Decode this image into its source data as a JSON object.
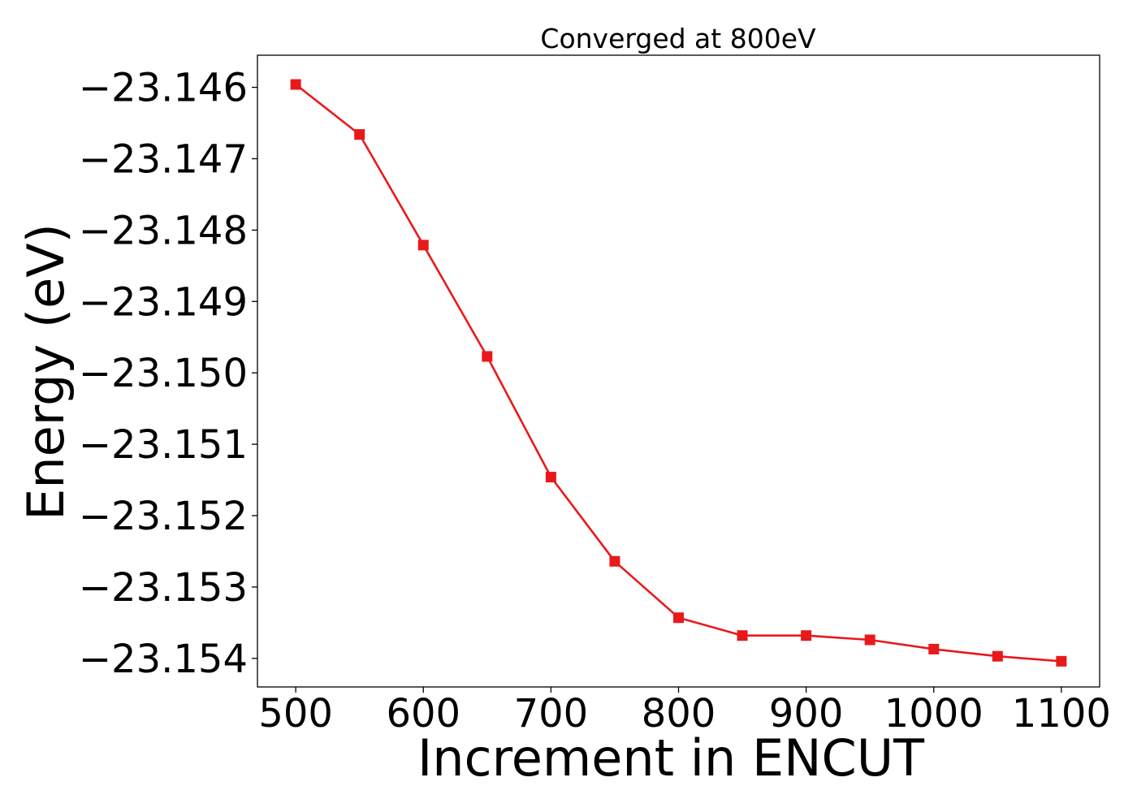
{
  "chart_data": {
    "type": "line",
    "title": "Converged at 800eV",
    "xlabel": "Increment in ENCUT",
    "ylabel": "Energy (eV)",
    "xlim": [
      470,
      1130
    ],
    "ylim": [
      -23.1544,
      -23.14555
    ],
    "xticks": [
      500,
      600,
      700,
      800,
      900,
      1000,
      1100
    ],
    "xtick_labels": [
      "500",
      "600",
      "700",
      "800",
      "900",
      "1000",
      "1100"
    ],
    "yticks": [
      -23.146,
      -23.147,
      -23.148,
      -23.149,
      -23.15,
      -23.151,
      -23.152,
      -23.153,
      -23.154
    ],
    "ytick_labels": [
      "−23.146",
      "−23.147",
      "−23.148",
      "−23.149",
      "−23.150",
      "−23.151",
      "−23.152",
      "−23.153",
      "−23.154"
    ],
    "grid": false,
    "series": [
      {
        "color": "#e8191b",
        "marker": "square",
        "x": [
          500,
          550,
          600,
          650,
          700,
          750,
          800,
          850,
          900,
          950,
          1000,
          1050,
          1100
        ],
        "y": [
          -23.14596,
          -23.14666,
          -23.14821,
          -23.14977,
          -23.15146,
          -23.15264,
          -23.15343,
          -23.15368,
          -23.15368,
          -23.15374,
          -23.15387,
          -23.15397,
          -23.15404
        ]
      }
    ]
  }
}
